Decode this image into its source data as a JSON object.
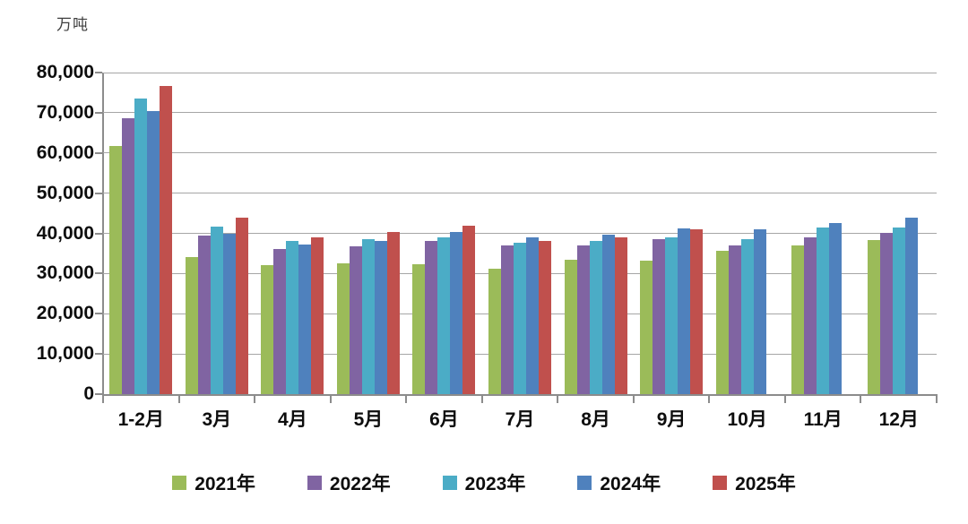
{
  "unit_label": "万吨",
  "chart_data": {
    "type": "bar",
    "title": "",
    "xlabel": "",
    "ylabel": "万吨",
    "ylim": [
      0,
      80000
    ],
    "ytick_interval": 10000,
    "grid": true,
    "legend_position": "bottom",
    "categories": [
      "1-2月",
      "3月",
      "4月",
      "5月",
      "6月",
      "7月",
      "8月",
      "9月",
      "10月",
      "11月",
      "12月"
    ],
    "series": [
      {
        "name": "2021年",
        "color": "#9BBB59",
        "values": [
          61800,
          34000,
          32200,
          32600,
          32300,
          31200,
          33400,
          33200,
          35600,
          37000,
          38300
        ]
      },
      {
        "name": "2022年",
        "color": "#8064A2",
        "values": [
          68700,
          39500,
          36100,
          36800,
          38000,
          37000,
          36900,
          38500,
          36900,
          38900,
          40100
        ]
      },
      {
        "name": "2023年",
        "color": "#4BACC6",
        "values": [
          73500,
          41700,
          38100,
          38500,
          39000,
          37600,
          38100,
          39100,
          38600,
          41400,
          41400
        ]
      },
      {
        "name": "2024年",
        "color": "#4F81BD",
        "values": [
          70500,
          39900,
          37200,
          38200,
          40400,
          38900,
          39700,
          41300,
          41100,
          42600,
          43800
        ]
      },
      {
        "name": "2025年",
        "color": "#C0504D",
        "values": [
          76600,
          44000,
          38900,
          40300,
          42000,
          38100,
          38900,
          40900,
          null,
          null,
          null
        ]
      }
    ]
  },
  "y_axis": {
    "tick_labels": [
      "0",
      "10,000",
      "20,000",
      "30,000",
      "40,000",
      "50,000",
      "60,000",
      "70,000",
      "80,000"
    ]
  }
}
